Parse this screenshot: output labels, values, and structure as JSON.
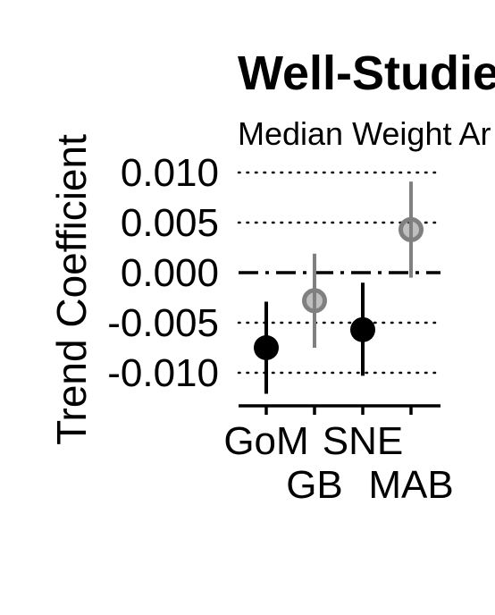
{
  "chart_data": {
    "type": "scatter",
    "title": "Well-Studie",
    "subtitle": "Median Weight Ar",
    "xlabel": "",
    "ylabel": "Trend Coefficient",
    "categories": [
      "GoM",
      "GB",
      "SNE",
      "MAB"
    ],
    "yticks": [
      0.01,
      0.005,
      0.0,
      -0.005,
      -0.01
    ],
    "ytick_labels": [
      "0.010",
      "0.005",
      "0.000",
      "-0.005",
      "-0.010"
    ],
    "ylim": [
      -0.0133,
      0.0123
    ],
    "reference_line": {
      "y": 0.0,
      "style": "dash-dot"
    },
    "grid": "horizontal dotted at y ticks",
    "points": [
      {
        "category": "GoM",
        "value": -0.0075,
        "lower": -0.0121,
        "upper": -0.0029,
        "significant": true
      },
      {
        "category": "GB",
        "value": -0.0028,
        "lower": -0.0075,
        "upper": 0.0019,
        "significant": false
      },
      {
        "category": "SNE",
        "value": -0.0057,
        "lower": -0.0103,
        "upper": -0.001,
        "significant": true
      },
      {
        "category": "MAB",
        "value": 0.0043,
        "lower": -0.0005,
        "upper": 0.0091,
        "significant": false
      }
    ],
    "colors": {
      "significant": "#000000",
      "not_significant": "#808080"
    }
  }
}
